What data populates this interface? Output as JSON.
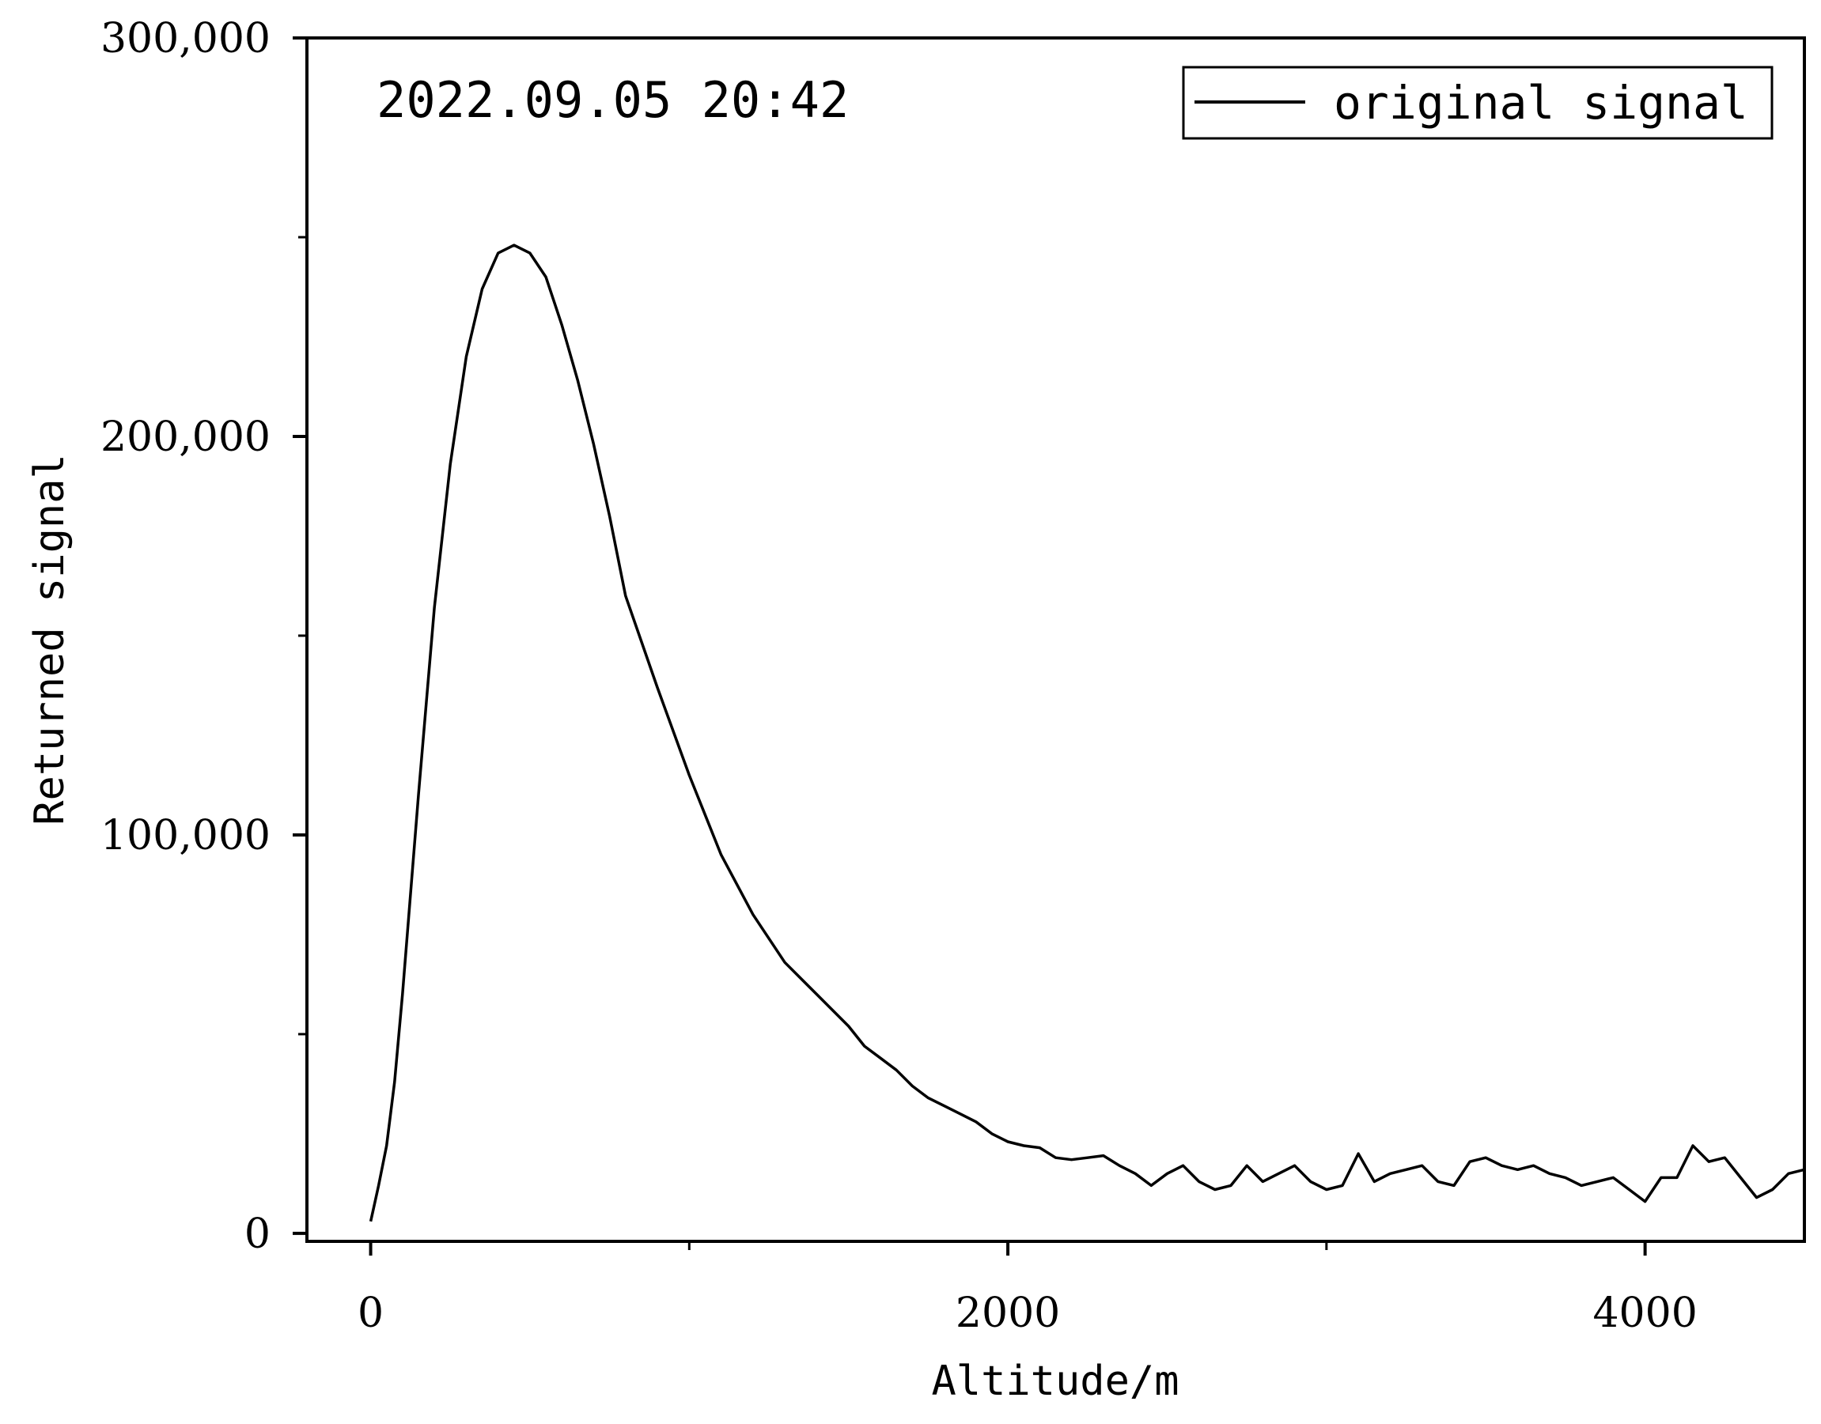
{
  "chart_data": {
    "type": "line",
    "title": "",
    "annotation": "2022.09.05 20:42",
    "xlabel": "Altitude/m",
    "ylabel": "Returned signal",
    "xlim": [
      -200,
      4500
    ],
    "ylim": [
      -2000,
      300000
    ],
    "x_ticks": [
      0,
      2000,
      4000
    ],
    "x_tick_labels": [
      "0",
      "2000",
      "4000"
    ],
    "x_minor_ticks": [
      1000,
      3000
    ],
    "y_ticks": [
      0,
      100000,
      200000,
      300000
    ],
    "y_tick_labels": [
      "0",
      "100,000",
      "200,000",
      "300,000"
    ],
    "y_minor_ticks": [
      50000,
      150000,
      250000
    ],
    "grid": false,
    "legend": {
      "position": "top-right",
      "entries": [
        "original signal"
      ]
    },
    "series": [
      {
        "name": "original signal",
        "color": "#000000",
        "x": [
          0,
          25,
          50,
          75,
          100,
          150,
          200,
          250,
          300,
          350,
          400,
          450,
          500,
          550,
          600,
          650,
          700,
          750,
          800,
          900,
          1000,
          1100,
          1200,
          1300,
          1400,
          1500,
          1550,
          1600,
          1650,
          1700,
          1750,
          1800,
          1850,
          1900,
          1950,
          2000,
          2050,
          2100,
          2150,
          2200,
          2250,
          2300,
          2350,
          2400,
          2450,
          2500,
          2550,
          2600,
          2650,
          2700,
          2750,
          2800,
          2850,
          2900,
          2950,
          3000,
          3050,
          3100,
          3150,
          3200,
          3250,
          3300,
          3350,
          3400,
          3450,
          3500,
          3550,
          3600,
          3650,
          3700,
          3750,
          3800,
          3850,
          3900,
          3950,
          4000,
          4050,
          4100,
          4150,
          4200,
          4250,
          4300,
          4350,
          4400,
          4450,
          4500
        ],
        "values": [
          3000,
          12000,
          22000,
          38000,
          60000,
          110000,
          157000,
          193000,
          220000,
          237000,
          246000,
          248000,
          246000,
          240000,
          228000,
          214000,
          198000,
          180000,
          160000,
          137000,
          115000,
          95000,
          80000,
          68000,
          60000,
          52000,
          47000,
          44000,
          41000,
          37000,
          34000,
          32000,
          30000,
          28000,
          25000,
          23000,
          22000,
          21500,
          19000,
          18500,
          19000,
          19500,
          17000,
          15000,
          12000,
          15000,
          17000,
          13000,
          11000,
          12000,
          17000,
          13000,
          15000,
          17000,
          13000,
          11000,
          12000,
          20000,
          13000,
          15000,
          16000,
          17000,
          13000,
          12000,
          18000,
          19000,
          17000,
          16000,
          17000,
          15000,
          14000,
          12000,
          13000,
          14000,
          11000,
          8000,
          14000,
          14000,
          22000,
          18000,
          19000,
          14000,
          9000,
          11000,
          15000,
          16000
        ]
      }
    ]
  }
}
